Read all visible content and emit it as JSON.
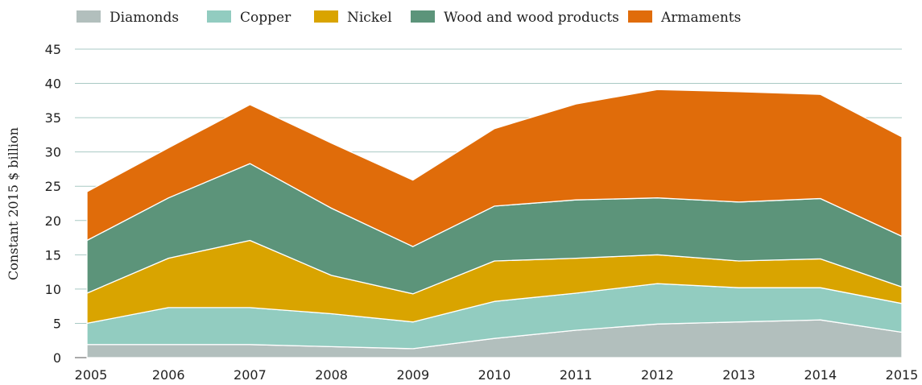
{
  "chart_data": {
    "type": "area",
    "stacked": true,
    "ylabel": "Constant 2015 $ billion",
    "x": [
      "2005",
      "2006",
      "2007",
      "2008",
      "2009",
      "2010",
      "2011",
      "2012",
      "2013",
      "2014",
      "2015"
    ],
    "yticks": [
      "0",
      "5",
      "10",
      "15",
      "20",
      "25",
      "30",
      "35",
      "40",
      "45"
    ],
    "ylim": [
      0,
      45
    ],
    "grid": true,
    "legend_position": "top",
    "series": [
      {
        "name": "Diamonds",
        "color": "#b2bfbd",
        "values": [
          1.9,
          1.9,
          1.9,
          1.6,
          1.3,
          2.8,
          4.0,
          4.9,
          5.2,
          5.5,
          3.7
        ]
      },
      {
        "name": "Copper",
        "color": "#92ccc0",
        "values": [
          3.1,
          5.4,
          5.4,
          4.8,
          3.9,
          5.4,
          5.4,
          5.9,
          5.0,
          4.7,
          4.2
        ]
      },
      {
        "name": "Nickel",
        "color": "#d9a400",
        "values": [
          4.4,
          7.2,
          9.8,
          5.6,
          4.1,
          5.9,
          5.1,
          4.2,
          3.9,
          4.2,
          2.4
        ]
      },
      {
        "name": "Wood and wood products",
        "color": "#5c947a",
        "values": [
          7.7,
          8.8,
          11.2,
          9.8,
          6.9,
          8.0,
          8.5,
          8.3,
          8.6,
          8.8,
          7.4
        ]
      },
      {
        "name": "Armaments",
        "color": "#e06c0a",
        "values": [
          7.1,
          7.3,
          8.6,
          9.5,
          9.7,
          11.3,
          14.0,
          15.8,
          16.1,
          15.2,
          14.5
        ]
      }
    ]
  }
}
